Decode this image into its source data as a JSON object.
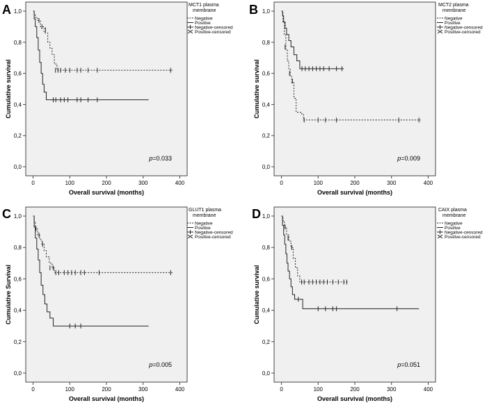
{
  "chart_data": [
    {
      "type": "line",
      "panel_letter": "A",
      "legend_title": [
        "MCT1 plasma",
        "membrane"
      ],
      "legend_entries": [
        "Negative",
        "Positive",
        "Negative-censored",
        "Positive-censored"
      ],
      "xlabel": "Overall survival (months)",
      "ylabel": "Cumulative survival",
      "xlim": [
        -20,
        420
      ],
      "ylim": [
        0,
        1.0
      ],
      "xticks": [
        0,
        100,
        200,
        300,
        400
      ],
      "yticks": [
        0.0,
        0.2,
        0.4,
        0.6,
        0.8,
        1.0
      ],
      "ytick_labels": [
        "0,0",
        "0,2",
        "0,4",
        "0,6",
        "0,8",
        "1,0"
      ],
      "p_prefix": "p",
      "p_value": "=0.033",
      "series": [
        {
          "name": "Negative",
          "style": "dotted",
          "steps": [
            [
              0,
              1.0
            ],
            [
              3,
              0.98
            ],
            [
              6,
              0.96
            ],
            [
              12,
              0.94
            ],
            [
              20,
              0.9
            ],
            [
              30,
              0.86
            ],
            [
              40,
              0.8
            ],
            [
              46,
              0.76
            ],
            [
              52,
              0.72
            ],
            [
              58,
              0.66
            ],
            [
              65,
              0.62
            ],
            [
              380,
              0.62
            ]
          ],
          "censored": [
            [
              16,
              0.94
            ],
            [
              24,
              0.9
            ],
            [
              34,
              0.88
            ],
            [
              61,
              0.62
            ],
            [
              68,
              0.62
            ],
            [
              75,
              0.62
            ],
            [
              88,
              0.62
            ],
            [
              100,
              0.62
            ],
            [
              120,
              0.62
            ],
            [
              130,
              0.62
            ],
            [
              150,
              0.62
            ],
            [
              175,
              0.62
            ],
            [
              375,
              0.62
            ]
          ]
        },
        {
          "name": "Positive",
          "style": "solid",
          "steps": [
            [
              0,
              1.0
            ],
            [
              3,
              0.95
            ],
            [
              6,
              0.9
            ],
            [
              10,
              0.83
            ],
            [
              14,
              0.75
            ],
            [
              18,
              0.67
            ],
            [
              22,
              0.6
            ],
            [
              26,
              0.53
            ],
            [
              30,
              0.48
            ],
            [
              36,
              0.43
            ],
            [
              315,
              0.43
            ]
          ],
          "censored": [
            [
              55,
              0.43
            ],
            [
              62,
              0.43
            ],
            [
              75,
              0.43
            ],
            [
              85,
              0.43
            ],
            [
              95,
              0.43
            ],
            [
              120,
              0.43
            ],
            [
              130,
              0.43
            ],
            [
              150,
              0.43
            ],
            [
              175,
              0.43
            ]
          ]
        }
      ]
    },
    {
      "type": "line",
      "panel_letter": "B",
      "legend_title": [
        "MCT2 plasma",
        "membrane"
      ],
      "legend_entries": [
        "Negative",
        "Positive",
        "Negative-censored",
        "Positive-censored"
      ],
      "xlabel": "Overall survival (months)",
      "ylabel": "Cumulative survival",
      "xlim": [
        -20,
        420
      ],
      "ylim": [
        0,
        1.0
      ],
      "xticks": [
        0,
        100,
        200,
        300,
        400
      ],
      "yticks": [
        0.0,
        0.2,
        0.4,
        0.6,
        0.8,
        1.0
      ],
      "ytick_labels": [
        "0,0",
        "0,2",
        "0,4",
        "0,6",
        "0,8",
        "1,0"
      ],
      "p_prefix": "p",
      "p_value": "=0.009",
      "series": [
        {
          "name": "Negative",
          "style": "dotted",
          "steps": [
            [
              0,
              1.0
            ],
            [
              4,
              0.93
            ],
            [
              8,
              0.85
            ],
            [
              12,
              0.75
            ],
            [
              16,
              0.68
            ],
            [
              20,
              0.63
            ],
            [
              24,
              0.58
            ],
            [
              28,
              0.54
            ],
            [
              34,
              0.44
            ],
            [
              40,
              0.35
            ],
            [
              55,
              0.34
            ],
            [
              60,
              0.3
            ],
            [
              380,
              0.3
            ]
          ],
          "censored": [
            [
              10,
              0.77
            ],
            [
              22,
              0.6
            ],
            [
              30,
              0.55
            ],
            [
              62,
              0.3
            ],
            [
              100,
              0.3
            ],
            [
              120,
              0.3
            ],
            [
              150,
              0.3
            ],
            [
              320,
              0.3
            ],
            [
              375,
              0.3
            ]
          ]
        },
        {
          "name": "Positive",
          "style": "solid",
          "steps": [
            [
              0,
              1.0
            ],
            [
              3,
              0.97
            ],
            [
              6,
              0.93
            ],
            [
              10,
              0.89
            ],
            [
              14,
              0.85
            ],
            [
              20,
              0.81
            ],
            [
              26,
              0.77
            ],
            [
              34,
              0.72
            ],
            [
              42,
              0.68
            ],
            [
              50,
              0.63
            ],
            [
              170,
              0.63
            ]
          ],
          "censored": [
            [
              56,
              0.63
            ],
            [
              65,
              0.63
            ],
            [
              75,
              0.63
            ],
            [
              85,
              0.63
            ],
            [
              95,
              0.63
            ],
            [
              105,
              0.63
            ],
            [
              115,
              0.63
            ],
            [
              130,
              0.63
            ],
            [
              150,
              0.63
            ],
            [
              165,
              0.63
            ]
          ]
        }
      ]
    },
    {
      "type": "line",
      "panel_letter": "C",
      "legend_title": [
        "GLUT1 plasma",
        "membrane"
      ],
      "legend_entries": [
        "Negative",
        "Positive",
        "Negative-censored",
        "Positive-censored"
      ],
      "xlabel": "Overall survival (months)",
      "ylabel": "Cumulative Survival",
      "xlim": [
        -20,
        420
      ],
      "ylim": [
        0,
        1.0
      ],
      "xticks": [
        0,
        100,
        200,
        300,
        400
      ],
      "yticks": [
        0.0,
        0.2,
        0.4,
        0.6,
        0.8,
        1.0
      ],
      "ytick_labels": [
        "0,0",
        "0,2",
        "0,4",
        "0,6",
        "0,8",
        "1,0"
      ],
      "p_prefix": "p",
      "p_value": "=0.005",
      "series": [
        {
          "name": "Negative",
          "style": "dotted",
          "steps": [
            [
              0,
              1.0
            ],
            [
              3,
              0.96
            ],
            [
              6,
              0.92
            ],
            [
              12,
              0.88
            ],
            [
              18,
              0.85
            ],
            [
              24,
              0.82
            ],
            [
              30,
              0.78
            ],
            [
              36,
              0.74
            ],
            [
              44,
              0.7
            ],
            [
              52,
              0.67
            ],
            [
              58,
              0.64
            ],
            [
              380,
              0.64
            ]
          ],
          "censored": [
            [
              8,
              0.92
            ],
            [
              16,
              0.88
            ],
            [
              26,
              0.82
            ],
            [
              46,
              0.67
            ],
            [
              55,
              0.67
            ],
            [
              62,
              0.64
            ],
            [
              70,
              0.64
            ],
            [
              85,
              0.64
            ],
            [
              95,
              0.64
            ],
            [
              105,
              0.64
            ],
            [
              115,
              0.64
            ],
            [
              130,
              0.64
            ],
            [
              140,
              0.64
            ],
            [
              180,
              0.64
            ],
            [
              375,
              0.64
            ]
          ]
        },
        {
          "name": "Positive",
          "style": "solid",
          "steps": [
            [
              0,
              1.0
            ],
            [
              3,
              0.93
            ],
            [
              6,
              0.86
            ],
            [
              10,
              0.79
            ],
            [
              14,
              0.72
            ],
            [
              18,
              0.64
            ],
            [
              22,
              0.56
            ],
            [
              27,
              0.5
            ],
            [
              32,
              0.44
            ],
            [
              38,
              0.39
            ],
            [
              46,
              0.35
            ],
            [
              55,
              0.3
            ],
            [
              315,
              0.3
            ]
          ],
          "censored": [
            [
              100,
              0.3
            ],
            [
              115,
              0.3
            ],
            [
              130,
              0.3
            ]
          ]
        }
      ]
    },
    {
      "type": "line",
      "panel_letter": "D",
      "legend_title": [
        "CAIX plasma",
        "membrane"
      ],
      "legend_entries": [
        "Negative",
        "Positive",
        "Negative-censored",
        "Positive-censored"
      ],
      "xlabel": "Overall survival (months)",
      "ylabel": "Cumulative survival",
      "xlim": [
        -20,
        420
      ],
      "ylim": [
        0,
        1.0
      ],
      "xticks": [
        0,
        100,
        200,
        300,
        400
      ],
      "yticks": [
        0.0,
        0.2,
        0.4,
        0.6,
        0.8,
        1.0
      ],
      "ytick_labels": [
        "0,0",
        "0,2",
        "0,4",
        "0,6",
        "0,8",
        "1,0"
      ],
      "p_prefix": "p",
      "p_value": "=0.051",
      "series": [
        {
          "name": "Negative",
          "style": "dotted",
          "steps": [
            [
              0,
              1.0
            ],
            [
              4,
              0.97
            ],
            [
              8,
              0.93
            ],
            [
              14,
              0.88
            ],
            [
              20,
              0.84
            ],
            [
              26,
              0.8
            ],
            [
              32,
              0.73
            ],
            [
              38,
              0.67
            ],
            [
              44,
              0.62
            ],
            [
              50,
              0.58
            ],
            [
              180,
              0.58
            ]
          ],
          "censored": [
            [
              10,
              0.93
            ],
            [
              18,
              0.86
            ],
            [
              28,
              0.8
            ],
            [
              55,
              0.58
            ],
            [
              62,
              0.58
            ],
            [
              75,
              0.58
            ],
            [
              85,
              0.58
            ],
            [
              95,
              0.58
            ],
            [
              105,
              0.58
            ],
            [
              115,
              0.58
            ],
            [
              125,
              0.58
            ],
            [
              140,
              0.58
            ],
            [
              155,
              0.58
            ],
            [
              170,
              0.58
            ],
            [
              178,
              0.58
            ]
          ]
        },
        {
          "name": "Positive",
          "style": "solid",
          "steps": [
            [
              0,
              1.0
            ],
            [
              3,
              0.94
            ],
            [
              6,
              0.88
            ],
            [
              9,
              0.82
            ],
            [
              12,
              0.76
            ],
            [
              15,
              0.7
            ],
            [
              18,
              0.65
            ],
            [
              22,
              0.6
            ],
            [
              26,
              0.55
            ],
            [
              30,
              0.5
            ],
            [
              36,
              0.47
            ],
            [
              58,
              0.41
            ],
            [
              375,
              0.41
            ]
          ],
          "censored": [
            [
              46,
              0.47
            ],
            [
              100,
              0.41
            ],
            [
              120,
              0.41
            ],
            [
              140,
              0.41
            ],
            [
              150,
              0.41
            ],
            [
              315,
              0.41
            ]
          ]
        }
      ]
    }
  ]
}
